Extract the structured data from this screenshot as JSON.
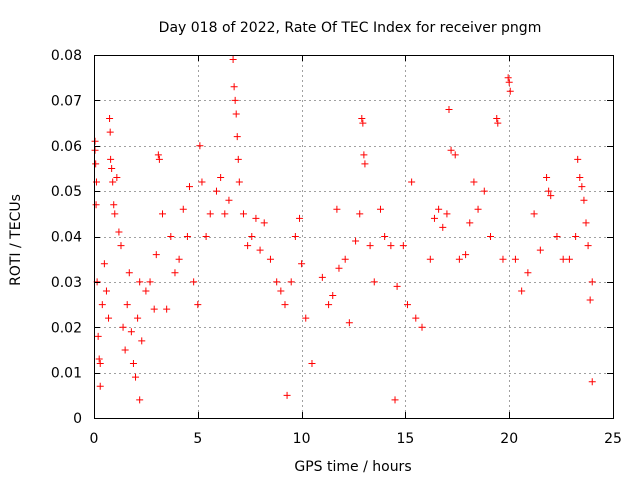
{
  "chart_data": {
    "type": "scatter",
    "title": "Day 018 of 2022, Rate Of TEC Index for receiver pngm",
    "xlabel": "GPS time / hours",
    "ylabel": "ROTI / TECUs",
    "xlim": [
      0,
      25
    ],
    "ylim": [
      0,
      0.08
    ],
    "xticks": [
      0,
      5,
      10,
      15,
      20,
      25
    ],
    "xtick_labels": [
      "0",
      "5",
      "10",
      "15",
      "20",
      "25"
    ],
    "yticks": [
      0,
      0.01,
      0.02,
      0.03,
      0.04,
      0.05,
      0.06,
      0.07,
      0.08
    ],
    "ytick_labels": [
      "0",
      "0.01",
      "0.02",
      "0.03",
      "0.04",
      "0.05",
      "0.06",
      "0.07",
      "0.08"
    ],
    "grid": true,
    "marker": "plus",
    "series": [
      {
        "name": "ROTI",
        "color": "#ff0000",
        "note": "dense scatter, representative points read from the plot",
        "points": [
          [
            0.05,
            0.061
          ],
          [
            0.05,
            0.059
          ],
          [
            0.08,
            0.056
          ],
          [
            0.1,
            0.047
          ],
          [
            0.12,
            0.052
          ],
          [
            0.15,
            0.03
          ],
          [
            0.2,
            0.018
          ],
          [
            0.25,
            0.013
          ],
          [
            0.3,
            0.012
          ],
          [
            0.4,
            0.025
          ],
          [
            0.5,
            0.034
          ],
          [
            0.6,
            0.028
          ],
          [
            0.7,
            0.022
          ],
          [
            0.75,
            0.066
          ],
          [
            0.78,
            0.063
          ],
          [
            0.8,
            0.057
          ],
          [
            0.85,
            0.055
          ],
          [
            0.9,
            0.052
          ],
          [
            0.95,
            0.047
          ],
          [
            1.0,
            0.045
          ],
          [
            1.1,
            0.053
          ],
          [
            1.2,
            0.041
          ],
          [
            1.3,
            0.038
          ],
          [
            1.4,
            0.02
          ],
          [
            1.5,
            0.015
          ],
          [
            1.6,
            0.025
          ],
          [
            1.7,
            0.032
          ],
          [
            1.8,
            0.019
          ],
          [
            1.9,
            0.012
          ],
          [
            2.0,
            0.009
          ],
          [
            2.1,
            0.022
          ],
          [
            2.2,
            0.03
          ],
          [
            2.3,
            0.017
          ],
          [
            2.5,
            0.028
          ],
          [
            2.7,
            0.03
          ],
          [
            2.9,
            0.024
          ],
          [
            3.0,
            0.036
          ],
          [
            3.1,
            0.058
          ],
          [
            3.15,
            0.057
          ],
          [
            3.3,
            0.045
          ],
          [
            3.5,
            0.024
          ],
          [
            3.7,
            0.04
          ],
          [
            3.9,
            0.032
          ],
          [
            4.1,
            0.035
          ],
          [
            4.3,
            0.046
          ],
          [
            4.5,
            0.04
          ],
          [
            4.6,
            0.051
          ],
          [
            4.8,
            0.03
          ],
          [
            5.0,
            0.025
          ],
          [
            5.1,
            0.06
          ],
          [
            5.2,
            0.052
          ],
          [
            5.4,
            0.04
          ],
          [
            5.6,
            0.045
          ],
          [
            5.9,
            0.05
          ],
          [
            6.1,
            0.053
          ],
          [
            6.3,
            0.045
          ],
          [
            6.5,
            0.048
          ],
          [
            6.7,
            0.079
          ],
          [
            6.75,
            0.073
          ],
          [
            6.8,
            0.07
          ],
          [
            6.85,
            0.067
          ],
          [
            6.9,
            0.062
          ],
          [
            6.95,
            0.057
          ],
          [
            7.0,
            0.052
          ],
          [
            7.2,
            0.045
          ],
          [
            7.4,
            0.038
          ],
          [
            7.6,
            0.04
          ],
          [
            7.8,
            0.044
          ],
          [
            8.0,
            0.037
          ],
          [
            8.2,
            0.043
          ],
          [
            8.5,
            0.035
          ],
          [
            8.8,
            0.03
          ],
          [
            9.0,
            0.028
          ],
          [
            9.2,
            0.025
          ],
          [
            9.5,
            0.03
          ],
          [
            9.7,
            0.04
          ],
          [
            9.9,
            0.044
          ],
          [
            10.0,
            0.034
          ],
          [
            10.2,
            0.022
          ],
          [
            10.5,
            0.012
          ],
          [
            11.0,
            0.031
          ],
          [
            11.3,
            0.025
          ],
          [
            11.5,
            0.027
          ],
          [
            11.7,
            0.046
          ],
          [
            11.8,
            0.033
          ],
          [
            12.1,
            0.035
          ],
          [
            12.3,
            0.021
          ],
          [
            12.6,
            0.039
          ],
          [
            12.8,
            0.045
          ],
          [
            12.9,
            0.066
          ],
          [
            12.95,
            0.065
          ],
          [
            13.0,
            0.058
          ],
          [
            13.05,
            0.056
          ],
          [
            13.3,
            0.038
          ],
          [
            13.5,
            0.03
          ],
          [
            13.8,
            0.046
          ],
          [
            14.0,
            0.04
          ],
          [
            14.3,
            0.038
          ],
          [
            14.6,
            0.029
          ],
          [
            14.9,
            0.038
          ],
          [
            15.1,
            0.025
          ],
          [
            15.3,
            0.052
          ],
          [
            15.5,
            0.022
          ],
          [
            15.8,
            0.02
          ],
          [
            16.2,
            0.035
          ],
          [
            16.4,
            0.044
          ],
          [
            16.6,
            0.046
          ],
          [
            16.8,
            0.042
          ],
          [
            17.0,
            0.045
          ],
          [
            17.1,
            0.068
          ],
          [
            17.2,
            0.059
          ],
          [
            17.4,
            0.058
          ],
          [
            17.6,
            0.035
          ],
          [
            17.9,
            0.036
          ],
          [
            18.1,
            0.043
          ],
          [
            18.3,
            0.052
          ],
          [
            18.5,
            0.046
          ],
          [
            18.8,
            0.05
          ],
          [
            19.1,
            0.04
          ],
          [
            19.4,
            0.066
          ],
          [
            19.45,
            0.065
          ],
          [
            19.7,
            0.035
          ],
          [
            19.95,
            0.075
          ],
          [
            20.0,
            0.074
          ],
          [
            20.05,
            0.072
          ],
          [
            20.3,
            0.035
          ],
          [
            20.6,
            0.028
          ],
          [
            20.9,
            0.032
          ],
          [
            21.2,
            0.045
          ],
          [
            21.5,
            0.037
          ],
          [
            21.8,
            0.053
          ],
          [
            21.9,
            0.05
          ],
          [
            22.0,
            0.049
          ],
          [
            22.3,
            0.04
          ],
          [
            22.6,
            0.035
          ],
          [
            22.9,
            0.035
          ],
          [
            23.2,
            0.04
          ],
          [
            23.3,
            0.057
          ],
          [
            23.4,
            0.053
          ],
          [
            23.5,
            0.051
          ],
          [
            23.6,
            0.048
          ],
          [
            23.7,
            0.043
          ],
          [
            23.8,
            0.038
          ],
          [
            23.9,
            0.026
          ],
          [
            24.0,
            0.008
          ],
          [
            24.0,
            0.03
          ],
          [
            0.3,
            0.007
          ],
          [
            2.2,
            0.004
          ],
          [
            9.3,
            0.005
          ],
          [
            14.5,
            0.004
          ]
        ]
      }
    ]
  }
}
